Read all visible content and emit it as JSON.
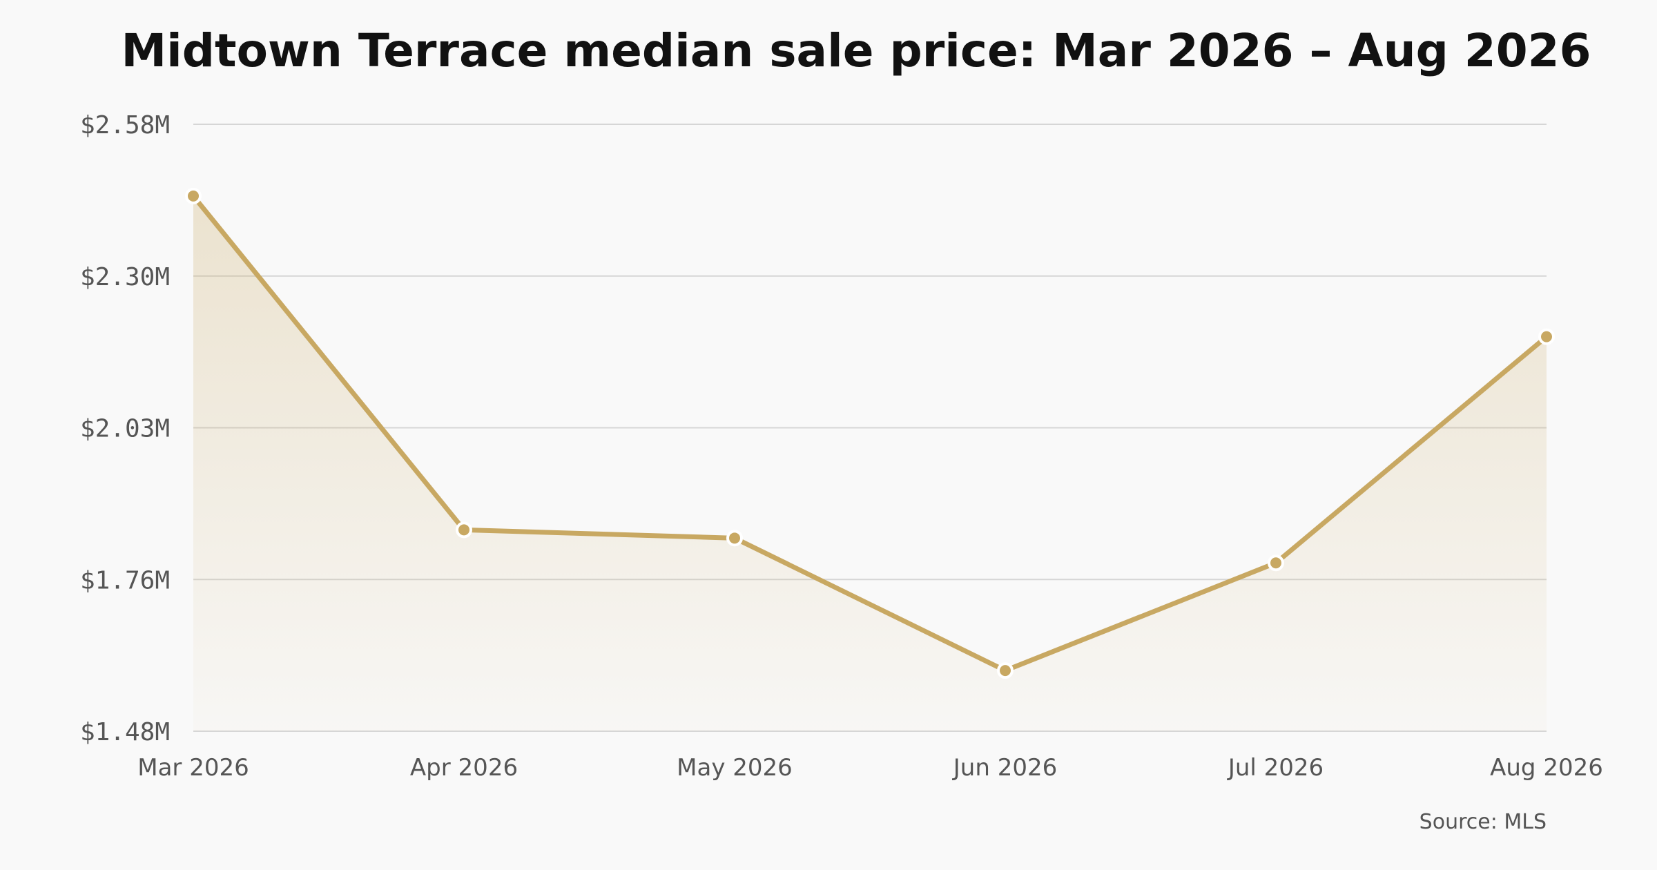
{
  "chart_data": {
    "type": "area",
    "title": "Midtown Terrace median sale price: Mar 2026 – Aug 2026",
    "source": "Source: MLS",
    "categories": [
      "Mar 2026",
      "Apr 2026",
      "May 2026",
      "Jun 2026",
      "Jul 2026",
      "Aug 2026"
    ],
    "values": [
      2450000,
      1845000,
      1830000,
      1590000,
      1785000,
      2195000
    ],
    "ylim": [
      1480000,
      2580000
    ],
    "yticks": [
      1480000,
      1755000,
      2030000,
      2305000,
      2580000
    ],
    "ytick_labels": [
      "$1.48M",
      "$1.76M",
      "$2.03M",
      "$2.30M",
      "$2.58M"
    ],
    "grid": true,
    "legend": "none",
    "colors": {
      "line": "#c8a862",
      "fill": "#c8a862",
      "grid": "#d6d6d6",
      "background": "#f9f9f9"
    }
  }
}
